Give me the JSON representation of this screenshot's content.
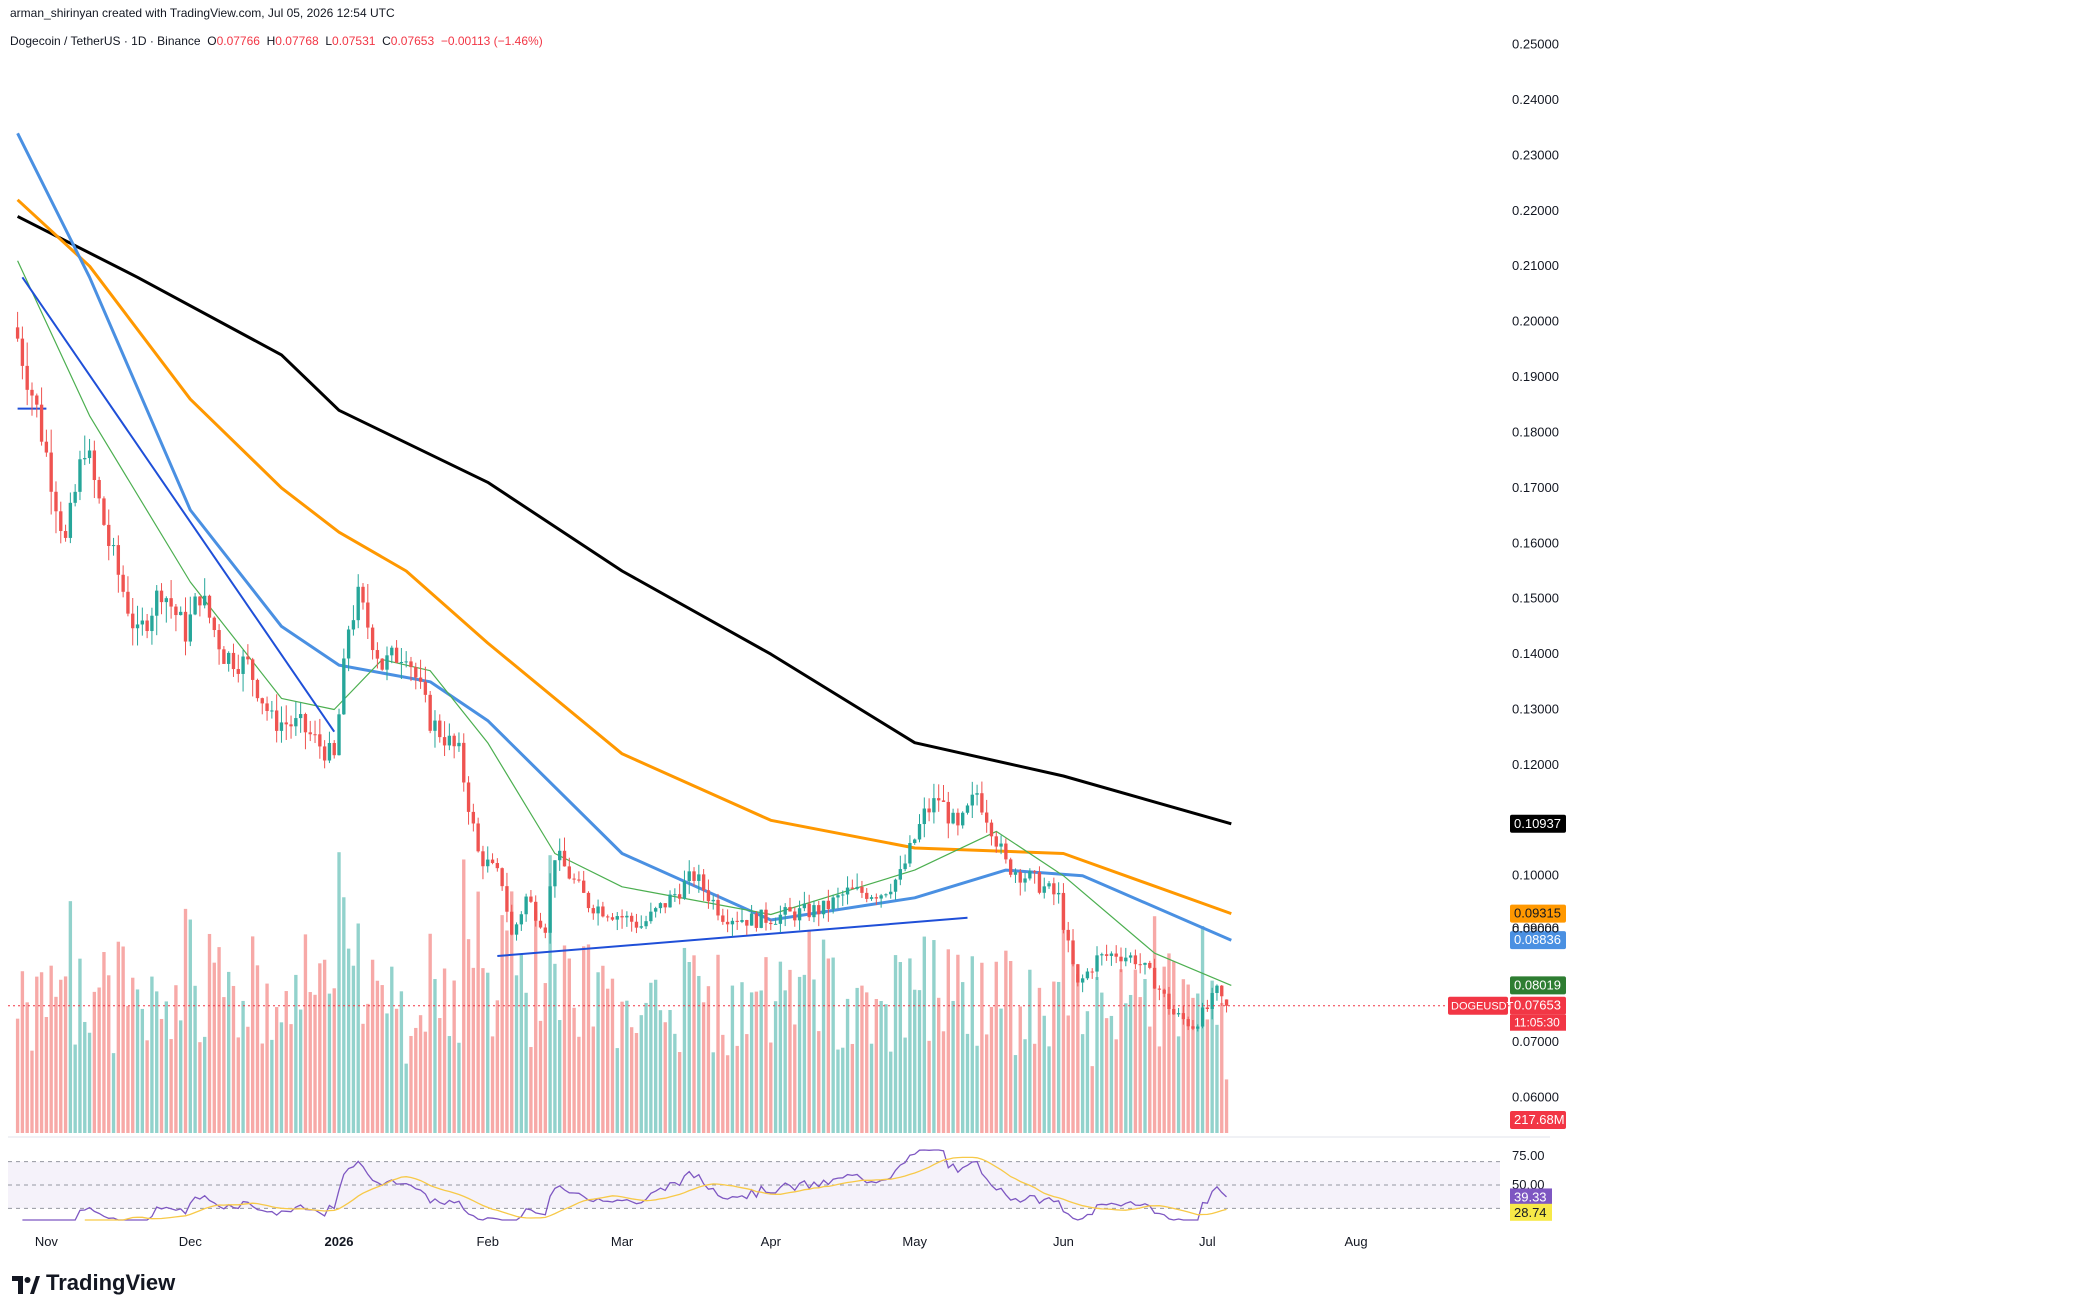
{
  "header": {
    "created_by": "arman_shirinyan created with TradingView.com, Jul 05, 2026 12:54 UTC",
    "symbol": "Dogecoin / TetherUS · 1D · Binance",
    "o_label": "O",
    "o_value": "0.07766",
    "h_label": "H",
    "h_value": "0.07768",
    "l_label": "L",
    "l_value": "0.07531",
    "c_label": "C",
    "c_value": "0.07653",
    "change": "−0.00113 (−1.46%)"
  },
  "brand": {
    "name": "TradingView"
  },
  "colors": {
    "up": "#26a69a",
    "down": "#ef5350",
    "sma200": "#000000",
    "sma100": "#ff9800",
    "sma50": "#4a90e2",
    "sma20": "#4caf50",
    "trend": "#1f4fd8",
    "rsi": "#7e57c2",
    "rsi_ma": "#f7c948"
  },
  "chart_data": {
    "type": "candlestick",
    "symbol": "DOGEUSDT",
    "timeframe": "1D",
    "ylim": [
      0.055,
      0.253
    ],
    "price_ticks": [
      "0.25000",
      "0.24000",
      "0.23000",
      "0.22000",
      "0.21000",
      "0.20000",
      "0.19000",
      "0.18000",
      "0.17000",
      "0.16000",
      "0.15000",
      "0.14000",
      "0.13000",
      "0.12000",
      "0.10000",
      "0.09000",
      "0.07000",
      "0.06000"
    ],
    "x_labels": [
      "Nov",
      "Dec",
      "2026",
      "Feb",
      "Mar",
      "Apr",
      "May",
      "Jun",
      "Jul",
      "Aug"
    ],
    "close_anchors": [
      {
        "date": "2025-10-26",
        "close": 0.197
      },
      {
        "date": "2025-10-30",
        "close": 0.184
      },
      {
        "date": "2025-11-05",
        "close": 0.16
      },
      {
        "date": "2025-11-09",
        "close": 0.178
      },
      {
        "date": "2025-11-14",
        "close": 0.16
      },
      {
        "date": "2025-11-20",
        "close": 0.143
      },
      {
        "date": "2025-11-25",
        "close": 0.152
      },
      {
        "date": "2025-11-30",
        "close": 0.144
      },
      {
        "date": "2025-12-03",
        "close": 0.151
      },
      {
        "date": "2025-12-08",
        "close": 0.14
      },
      {
        "date": "2025-12-13",
        "close": 0.138
      },
      {
        "date": "2025-12-18",
        "close": 0.128
      },
      {
        "date": "2025-12-24",
        "close": 0.127
      },
      {
        "date": "2025-12-31",
        "close": 0.121
      },
      {
        "date": "2026-01-03",
        "close": 0.145
      },
      {
        "date": "2026-01-05",
        "close": 0.15
      },
      {
        "date": "2026-01-10",
        "close": 0.138
      },
      {
        "date": "2026-01-15",
        "close": 0.141
      },
      {
        "date": "2026-01-20",
        "close": 0.128
      },
      {
        "date": "2026-01-26",
        "close": 0.122
      },
      {
        "date": "2026-01-30",
        "close": 0.104
      },
      {
        "date": "2026-02-04",
        "close": 0.099
      },
      {
        "date": "2026-02-06",
        "close": 0.089
      },
      {
        "date": "2026-02-09",
        "close": 0.096
      },
      {
        "date": "2026-02-13",
        "close": 0.091
      },
      {
        "date": "2026-02-15",
        "close": 0.104
      },
      {
        "date": "2026-02-22",
        "close": 0.095
      },
      {
        "date": "2026-02-28",
        "close": 0.093
      },
      {
        "date": "2026-03-05",
        "close": 0.091
      },
      {
        "date": "2026-03-10",
        "close": 0.095
      },
      {
        "date": "2026-03-16",
        "close": 0.1
      },
      {
        "date": "2026-03-22",
        "close": 0.093
      },
      {
        "date": "2026-03-28",
        "close": 0.092
      },
      {
        "date": "2026-04-05",
        "close": 0.093
      },
      {
        "date": "2026-04-12",
        "close": 0.094
      },
      {
        "date": "2026-04-17",
        "close": 0.097
      },
      {
        "date": "2026-04-24",
        "close": 0.097
      },
      {
        "date": "2026-04-28",
        "close": 0.1
      },
      {
        "date": "2026-05-03",
        "close": 0.111
      },
      {
        "date": "2026-05-06",
        "close": 0.114
      },
      {
        "date": "2026-05-10",
        "close": 0.108
      },
      {
        "date": "2026-05-14",
        "close": 0.115
      },
      {
        "date": "2026-05-17",
        "close": 0.109
      },
      {
        "date": "2026-05-20",
        "close": 0.102
      },
      {
        "date": "2026-05-26",
        "close": 0.099
      },
      {
        "date": "2026-05-31",
        "close": 0.096
      },
      {
        "date": "2026-06-02",
        "close": 0.087
      },
      {
        "date": "2026-06-04",
        "close": 0.08
      },
      {
        "date": "2026-06-08",
        "close": 0.085
      },
      {
        "date": "2026-06-12",
        "close": 0.086
      },
      {
        "date": "2026-06-16",
        "close": 0.085
      },
      {
        "date": "2026-06-20",
        "close": 0.081
      },
      {
        "date": "2026-06-24",
        "close": 0.075
      },
      {
        "date": "2026-06-28",
        "close": 0.073
      },
      {
        "date": "2026-07-01",
        "close": 0.076
      },
      {
        "date": "2026-07-03",
        "close": 0.079
      },
      {
        "date": "2026-07-05",
        "close": 0.07653
      }
    ],
    "last_candle": {
      "date": "2026-07-05",
      "open": 0.07766,
      "high": 0.07768,
      "low": 0.07531,
      "close": 0.07653
    },
    "moving_averages": [
      {
        "name": "SMA200",
        "color": "#000000",
        "last": 0.10937,
        "points": [
          {
            "date": "2025-10-26",
            "v": 0.219
          },
          {
            "date": "2025-11-20",
            "v": 0.208
          },
          {
            "date": "2025-12-20",
            "v": 0.194
          },
          {
            "date": "2026-01-01",
            "v": 0.184
          },
          {
            "date": "2026-02-01",
            "v": 0.171
          },
          {
            "date": "2026-03-01",
            "v": 0.155
          },
          {
            "date": "2026-04-01",
            "v": 0.14
          },
          {
            "date": "2026-05-01",
            "v": 0.124
          },
          {
            "date": "2026-06-01",
            "v": 0.118
          },
          {
            "date": "2026-07-06",
            "v": 0.10937
          }
        ]
      },
      {
        "name": "SMA100",
        "color": "#ff9800",
        "last": 0.09315,
        "points": [
          {
            "date": "2025-10-26",
            "v": 0.222
          },
          {
            "date": "2025-11-10",
            "v": 0.21
          },
          {
            "date": "2025-12-01",
            "v": 0.186
          },
          {
            "date": "2025-12-20",
            "v": 0.17
          },
          {
            "date": "2026-01-01",
            "v": 0.162
          },
          {
            "date": "2026-01-15",
            "v": 0.155
          },
          {
            "date": "2026-02-01",
            "v": 0.142
          },
          {
            "date": "2026-03-01",
            "v": 0.122
          },
          {
            "date": "2026-04-01",
            "v": 0.11
          },
          {
            "date": "2026-05-01",
            "v": 0.105
          },
          {
            "date": "2026-06-01",
            "v": 0.104
          },
          {
            "date": "2026-07-06",
            "v": 0.09315
          }
        ]
      },
      {
        "name": "SMA50",
        "color": "#4a90e2",
        "last": 0.08836,
        "points": [
          {
            "date": "2025-10-26",
            "v": 0.234
          },
          {
            "date": "2025-11-10",
            "v": 0.208
          },
          {
            "date": "2025-12-01",
            "v": 0.166
          },
          {
            "date": "2025-12-20",
            "v": 0.145
          },
          {
            "date": "2026-01-01",
            "v": 0.138
          },
          {
            "date": "2026-01-20",
            "v": 0.135
          },
          {
            "date": "2026-02-01",
            "v": 0.128
          },
          {
            "date": "2026-03-01",
            "v": 0.104
          },
          {
            "date": "2026-04-01",
            "v": 0.092
          },
          {
            "date": "2026-05-01",
            "v": 0.096
          },
          {
            "date": "2026-05-20",
            "v": 0.101
          },
          {
            "date": "2026-06-05",
            "v": 0.1
          },
          {
            "date": "2026-07-06",
            "v": 0.08836
          }
        ]
      },
      {
        "name": "SMA20",
        "color": "#4caf50",
        "last": 0.08019,
        "points": [
          {
            "date": "2025-10-26",
            "v": 0.211
          },
          {
            "date": "2025-11-10",
            "v": 0.183
          },
          {
            "date": "2025-12-01",
            "v": 0.153
          },
          {
            "date": "2025-12-20",
            "v": 0.132
          },
          {
            "date": "2025-12-31",
            "v": 0.13
          },
          {
            "date": "2026-01-10",
            "v": 0.139
          },
          {
            "date": "2026-01-20",
            "v": 0.137
          },
          {
            "date": "2026-02-01",
            "v": 0.124
          },
          {
            "date": "2026-02-15",
            "v": 0.104
          },
          {
            "date": "2026-03-01",
            "v": 0.098
          },
          {
            "date": "2026-04-01",
            "v": 0.093
          },
          {
            "date": "2026-05-01",
            "v": 0.101
          },
          {
            "date": "2026-05-18",
            "v": 0.108
          },
          {
            "date": "2026-06-01",
            "v": 0.1
          },
          {
            "date": "2026-06-20",
            "v": 0.086
          },
          {
            "date": "2026-07-06",
            "v": 0.08019
          }
        ]
      }
    ],
    "trendlines": [
      {
        "from": {
          "date": "2025-10-27",
          "v": 0.208
        },
        "to": {
          "date": "2025-12-31",
          "v": 0.126
        }
      },
      {
        "from": {
          "date": "2026-02-03",
          "v": 0.0855
        },
        "to": {
          "date": "2026-05-12",
          "v": 0.0924
        }
      },
      {
        "from": {
          "date": "2025-10-26",
          "v": 0.1843
        },
        "to": {
          "date": "2025-11-01",
          "v": 0.1843
        }
      }
    ],
    "price_tags": [
      {
        "text": "0.10937",
        "value": 0.10937,
        "bg": "#000000",
        "fg": "#ffffff"
      },
      {
        "text": "0.09315",
        "value": 0.09315,
        "bg": "#ff9800",
        "fg": "#131722"
      },
      {
        "text": "0.08836",
        "value": 0.08836,
        "bg": "#4a90e2",
        "fg": "#ffffff"
      },
      {
        "text": "0.08019",
        "value": 0.08019,
        "bg": "#2e7d32",
        "fg": "#ffffff"
      },
      {
        "text": "0.07653",
        "value": 0.07653,
        "bg": "#f23645",
        "fg": "#ffffff",
        "name": "DOGEUSDT",
        "countdown": "11:05:30"
      }
    ],
    "partial_tick": "0.09000",
    "volume": {
      "last_label": "217.68M",
      "max_millions": 1150,
      "last_millions": 217.68
    },
    "rsi": {
      "levels": [
        "75.00",
        "50.00"
      ],
      "value": "39.33",
      "ma_value": "28.74",
      "bounds": [
        70,
        30
      ]
    }
  }
}
